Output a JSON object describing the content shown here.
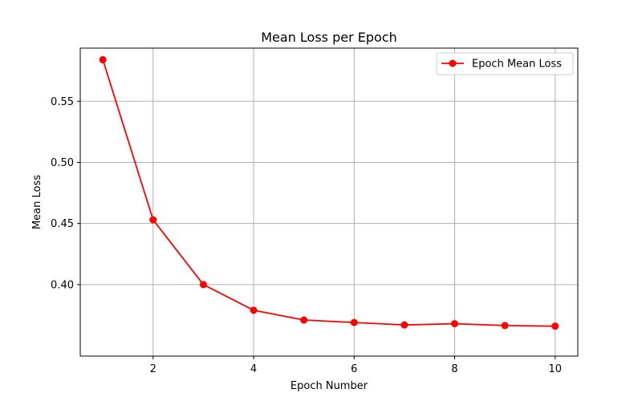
{
  "chart_data": {
    "type": "line",
    "title": "Mean Loss per Epoch",
    "xlabel": "Epoch Number",
    "ylabel": "Mean Loss",
    "x": [
      1,
      2,
      3,
      4,
      5,
      6,
      7,
      8,
      9,
      10
    ],
    "series": [
      {
        "name": "Epoch Mean Loss",
        "color": "#ff0000",
        "marker": "circle",
        "values": [
          0.584,
          0.453,
          0.4,
          0.379,
          0.371,
          0.369,
          0.367,
          0.368,
          0.3665,
          0.366
        ]
      }
    ],
    "xlim": [
      0.55,
      10.45
    ],
    "ylim": [
      0.3415,
      0.5935
    ],
    "xticks": [
      2,
      4,
      6,
      8,
      10
    ],
    "yticks": [
      0.4,
      0.45,
      0.5,
      0.55
    ],
    "xtick_labels": [
      "2",
      "4",
      "6",
      "8",
      "10"
    ],
    "ytick_labels": [
      "0.40",
      "0.45",
      "0.50",
      "0.55"
    ],
    "grid": true,
    "legend_position": "top-right"
  }
}
